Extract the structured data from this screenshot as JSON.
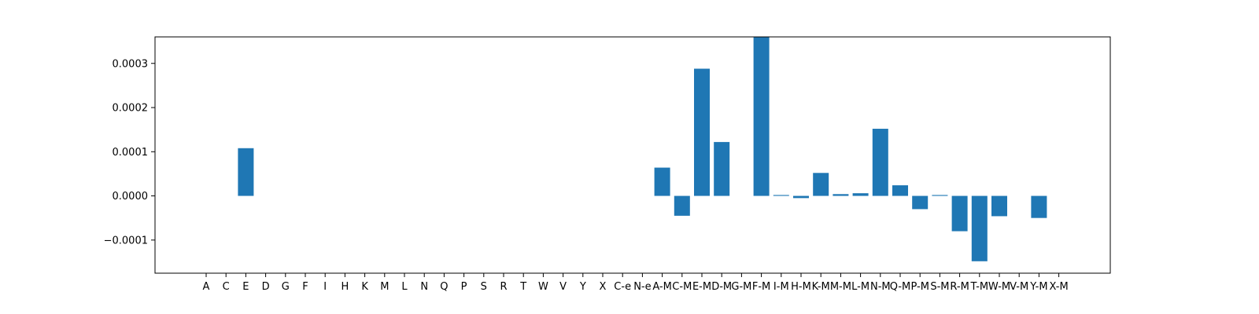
{
  "chart_data": {
    "type": "bar",
    "title": "",
    "xlabel": "",
    "ylabel": "",
    "ylim": [
      -0.000175,
      0.00036
    ],
    "grid": false,
    "bar_color": "#1f77b4",
    "categories": [
      "A",
      "C",
      "E",
      "D",
      "G",
      "F",
      "I",
      "H",
      "K",
      "M",
      "L",
      "N",
      "Q",
      "P",
      "S",
      "R",
      "T",
      "W",
      "V",
      "Y",
      "X",
      "C-e",
      "N-e",
      "A-M",
      "C-M",
      "E-M",
      "D-M",
      "G-M",
      "F-M",
      "I-M",
      "H-M",
      "K-M",
      "M-M",
      "L-M",
      "N-M",
      "Q-M",
      "P-M",
      "S-M",
      "R-M",
      "T-M",
      "W-M",
      "V-M",
      "Y-M",
      "X-M"
    ],
    "values": [
      0,
      0,
      0.000108,
      0,
      0,
      0,
      0,
      0,
      0,
      0,
      0,
      0,
      0,
      0,
      0,
      0,
      0,
      0,
      0,
      0,
      0,
      0,
      0,
      6.4e-05,
      -4.5e-05,
      0.000288,
      0.000122,
      0,
      0.00036,
      2e-06,
      -5e-06,
      5.2e-05,
      4e-06,
      6e-06,
      0.000152,
      2.4e-05,
      -3e-05,
      2e-06,
      -8e-05,
      -0.000148,
      -4.6e-05,
      0,
      -5e-05,
      0
    ],
    "yticks": [
      -0.0001,
      0.0,
      0.0001,
      0.0002,
      0.0003
    ],
    "ytick_labels": [
      "−0.0001",
      "0.0000",
      "0.0001",
      "0.0002",
      "0.0003"
    ]
  }
}
